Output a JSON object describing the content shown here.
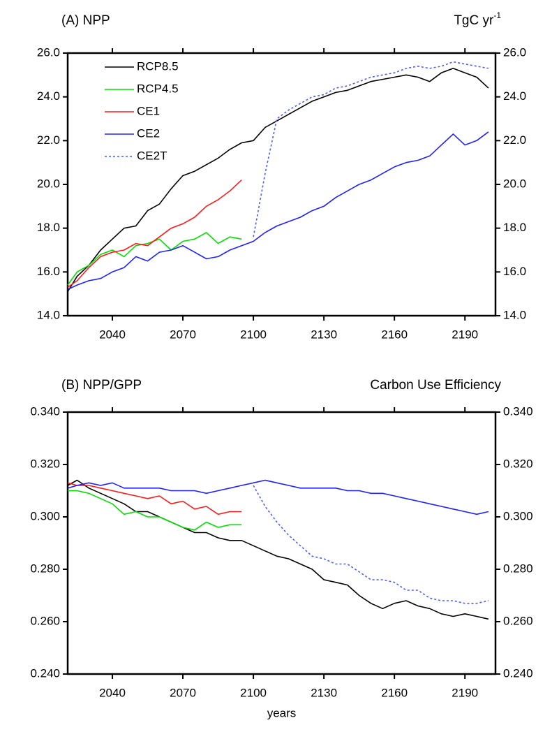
{
  "chart_data": [
    {
      "type": "line",
      "title": "(A) NPP",
      "subtitle": {
        "text": "TgC yr",
        "sup": "-1"
      },
      "x": [
        2021,
        2025,
        2030,
        2035,
        2040,
        2045,
        2050,
        2055,
        2060,
        2065,
        2070,
        2075,
        2080,
        2085,
        2090,
        2095,
        2100,
        2105,
        2110,
        2115,
        2120,
        2125,
        2130,
        2135,
        2140,
        2145,
        2150,
        2155,
        2160,
        2165,
        2170,
        2175,
        2180,
        2185,
        2190,
        2195,
        2200
      ],
      "xlim": [
        2021,
        2203
      ],
      "xticks": [
        2040,
        2070,
        2100,
        2130,
        2160,
        2190
      ],
      "ylim": [
        14,
        26
      ],
      "yticks": [
        {
          "value": 14,
          "label": "14.0"
        },
        {
          "value": 16,
          "label": "16.0"
        },
        {
          "value": 18,
          "label": "18.0"
        },
        {
          "value": 20,
          "label": "20.0"
        },
        {
          "value": 22,
          "label": "22.0"
        },
        {
          "value": 24,
          "label": "24.0"
        },
        {
          "value": 26,
          "label": "26.0"
        }
      ],
      "legend": "upper left",
      "series": [
        {
          "name": "RCP8.5",
          "color": "#000000",
          "dashed": false,
          "values": [
            15.1,
            15.8,
            16.3,
            17.0,
            17.5,
            18.0,
            18.1,
            18.8,
            19.1,
            19.8,
            20.4,
            20.6,
            20.9,
            21.2,
            21.6,
            21.9,
            22.0,
            22.6,
            22.9,
            23.2,
            23.5,
            23.8,
            24.0,
            24.2,
            24.3,
            24.5,
            24.7,
            24.8,
            24.9,
            25.0,
            24.9,
            24.7,
            25.1,
            25.3,
            25.1,
            24.9,
            24.4
          ]
        },
        {
          "name": "RCP4.5",
          "color": "#00e000",
          "dashed": false,
          "values": [
            15.4,
            16.0,
            16.3,
            16.8,
            17.0,
            16.7,
            17.2,
            17.3,
            17.5,
            17.0,
            17.4,
            17.5,
            17.8,
            17.3,
            17.6,
            17.5,
            null,
            null,
            null,
            null,
            null,
            null,
            null,
            null,
            null,
            null,
            null,
            null,
            null,
            null,
            null,
            null,
            null,
            null,
            null,
            null,
            null
          ]
        },
        {
          "name": "CE1",
          "color": "#ff1a1a",
          "dashed": false,
          "values": [
            15.3,
            15.6,
            16.2,
            16.7,
            16.9,
            17.0,
            17.3,
            17.2,
            17.6,
            18.0,
            18.2,
            18.5,
            19.0,
            19.3,
            19.7,
            20.2,
            null,
            null,
            null,
            null,
            null,
            null,
            null,
            null,
            null,
            null,
            null,
            null,
            null,
            null,
            null,
            null,
            null,
            null,
            null,
            null,
            null
          ]
        },
        {
          "name": "CE2",
          "color": "#2020ff",
          "dashed": false,
          "values": [
            15.2,
            15.4,
            15.6,
            15.7,
            16.0,
            16.2,
            16.7,
            16.5,
            16.9,
            17.0,
            17.2,
            16.9,
            16.6,
            16.7,
            17.0,
            17.2,
            17.4,
            17.8,
            18.1,
            18.3,
            18.5,
            18.8,
            19.0,
            19.4,
            19.7,
            20.0,
            20.2,
            20.5,
            20.8,
            21.0,
            21.1,
            21.3,
            21.8,
            22.3,
            21.8,
            22.0,
            22.4
          ]
        },
        {
          "name": "CE2T",
          "color": "#4a5cff",
          "dashed": true,
          "values": [
            null,
            null,
            null,
            null,
            null,
            null,
            null,
            null,
            null,
            null,
            null,
            null,
            null,
            null,
            null,
            null,
            17.6,
            20.5,
            23.0,
            23.4,
            23.7,
            24.0,
            24.1,
            24.4,
            24.5,
            24.7,
            24.9,
            25.0,
            25.1,
            25.3,
            25.4,
            25.3,
            25.4,
            25.6,
            25.5,
            25.4,
            25.3
          ]
        }
      ]
    },
    {
      "type": "line",
      "title": "(B) NPP/GPP",
      "subtitle": {
        "text": "Carbon Use Efficiency"
      },
      "xlabel": "years",
      "x": [
        2021,
        2025,
        2030,
        2035,
        2040,
        2045,
        2050,
        2055,
        2060,
        2065,
        2070,
        2075,
        2080,
        2085,
        2090,
        2095,
        2100,
        2105,
        2110,
        2115,
        2120,
        2125,
        2130,
        2135,
        2140,
        2145,
        2150,
        2155,
        2160,
        2165,
        2170,
        2175,
        2180,
        2185,
        2190,
        2195,
        2200
      ],
      "xlim": [
        2021,
        2203
      ],
      "xticks": [
        2040,
        2070,
        2100,
        2130,
        2160,
        2190
      ],
      "ylim": [
        0.24,
        0.34
      ],
      "yticks": [
        {
          "value": 0.24,
          "label": "0.240"
        },
        {
          "value": 0.26,
          "label": "0.260"
        },
        {
          "value": 0.28,
          "label": "0.280"
        },
        {
          "value": 0.3,
          "label": "0.300"
        },
        {
          "value": 0.32,
          "label": "0.320"
        },
        {
          "value": 0.34,
          "label": "0.340"
        }
      ],
      "legend": false,
      "series": [
        {
          "color": "#000000",
          "dashed": false,
          "values": [
            0.312,
            0.314,
            0.311,
            0.309,
            0.307,
            0.305,
            0.302,
            0.302,
            0.3,
            0.298,
            0.296,
            0.294,
            0.294,
            0.292,
            0.291,
            0.291,
            0.289,
            0.287,
            0.285,
            0.284,
            0.282,
            0.28,
            0.276,
            0.275,
            0.274,
            0.27,
            0.267,
            0.265,
            0.267,
            0.268,
            0.266,
            0.265,
            0.263,
            0.262,
            0.263,
            0.262,
            0.261
          ]
        },
        {
          "color": "#00e000",
          "dashed": false,
          "values": [
            0.31,
            0.31,
            0.309,
            0.307,
            0.305,
            0.301,
            0.302,
            0.3,
            0.3,
            0.298,
            0.296,
            0.295,
            0.298,
            0.296,
            0.297,
            0.297,
            null,
            null,
            null,
            null,
            null,
            null,
            null,
            null,
            null,
            null,
            null,
            null,
            null,
            null,
            null,
            null,
            null,
            null,
            null,
            null,
            null
          ]
        },
        {
          "color": "#ff1a1a",
          "dashed": false,
          "values": [
            0.313,
            0.312,
            0.312,
            0.311,
            0.31,
            0.309,
            0.308,
            0.307,
            0.308,
            0.305,
            0.306,
            0.303,
            0.304,
            0.301,
            0.302,
            0.302,
            null,
            null,
            null,
            null,
            null,
            null,
            null,
            null,
            null,
            null,
            null,
            null,
            null,
            null,
            null,
            null,
            null,
            null,
            null,
            null,
            null
          ]
        },
        {
          "color": "#2020ff",
          "dashed": false,
          "values": [
            0.311,
            0.312,
            0.313,
            0.312,
            0.313,
            0.311,
            0.311,
            0.311,
            0.311,
            0.31,
            0.31,
            0.31,
            0.309,
            0.31,
            0.311,
            0.312,
            0.313,
            0.314,
            0.313,
            0.312,
            0.311,
            0.311,
            0.311,
            0.311,
            0.31,
            0.31,
            0.309,
            0.309,
            0.308,
            0.307,
            0.306,
            0.305,
            0.304,
            0.303,
            0.302,
            0.301,
            0.302
          ]
        },
        {
          "color": "#4a5cff",
          "dashed": true,
          "values": [
            null,
            null,
            null,
            null,
            null,
            null,
            null,
            null,
            null,
            null,
            null,
            null,
            null,
            null,
            null,
            null,
            0.312,
            0.304,
            0.298,
            0.293,
            0.289,
            0.285,
            0.284,
            0.282,
            0.282,
            0.279,
            0.276,
            0.276,
            0.275,
            0.272,
            0.272,
            0.269,
            0.268,
            0.268,
            0.267,
            0.267,
            0.268
          ]
        }
      ]
    }
  ]
}
